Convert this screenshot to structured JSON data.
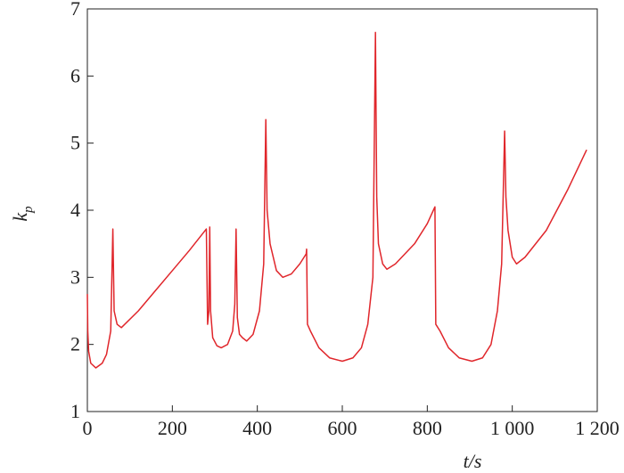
{
  "chart_data": {
    "type": "line",
    "xlabel": "t/s",
    "ylabel": {
      "text": "k",
      "subscript": "p"
    },
    "xlim": [
      0,
      1200
    ],
    "ylim": [
      1,
      7
    ],
    "xticks": [
      0,
      200,
      400,
      600,
      800,
      {
        "value": 1000,
        "label": "1 000"
      },
      {
        "value": 1200,
        "label": "1 200"
      }
    ],
    "yticks": [
      1,
      2,
      3,
      4,
      5,
      6,
      7
    ],
    "x": [
      0,
      1,
      3,
      8,
      20,
      35,
      45,
      55,
      60,
      63,
      70,
      80,
      120,
      160,
      200,
      240,
      280,
      283,
      286,
      288,
      290,
      295,
      305,
      315,
      330,
      342,
      347,
      350,
      353,
      358,
      365,
      375,
      390,
      405,
      415,
      420,
      423,
      430,
      445,
      460,
      480,
      500,
      515,
      516,
      518,
      525,
      545,
      570,
      600,
      625,
      645,
      660,
      672,
      678,
      681,
      685,
      695,
      705,
      725,
      770,
      800,
      818,
      820,
      830,
      850,
      875,
      905,
      930,
      950,
      965,
      975,
      982,
      985,
      990,
      1000,
      1010,
      1030,
      1080,
      1130,
      1175
    ],
    "series": [
      {
        "name": "kp",
        "color": "#e0262b",
        "values": [
          2.75,
          2.2,
          1.9,
          1.72,
          1.65,
          1.72,
          1.85,
          2.2,
          3.72,
          2.5,
          2.3,
          2.25,
          2.5,
          2.8,
          3.1,
          3.4,
          3.72,
          2.3,
          2.5,
          3.75,
          2.5,
          2.1,
          1.98,
          1.95,
          2.0,
          2.2,
          2.6,
          3.72,
          2.4,
          2.15,
          2.1,
          2.05,
          2.15,
          2.5,
          3.2,
          5.35,
          4.0,
          3.5,
          3.1,
          3.0,
          3.05,
          3.2,
          3.35,
          3.42,
          2.3,
          2.2,
          1.95,
          1.8,
          1.75,
          1.8,
          1.95,
          2.3,
          3.0,
          6.65,
          4.2,
          3.5,
          3.2,
          3.12,
          3.2,
          3.5,
          3.8,
          4.05,
          2.3,
          2.2,
          1.95,
          1.8,
          1.75,
          1.8,
          2.0,
          2.5,
          3.2,
          5.18,
          4.2,
          3.7,
          3.3,
          3.2,
          3.3,
          3.7,
          4.3,
          4.9
        ]
      }
    ]
  }
}
